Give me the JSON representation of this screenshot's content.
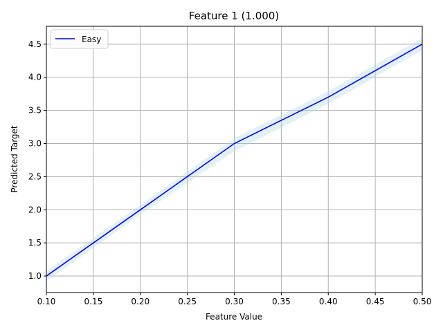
{
  "chart_data": {
    "type": "line",
    "title": "Feature 1 (1.000)",
    "xlabel": "Feature Value",
    "ylabel": "Predicted Target",
    "xlim": [
      0.1,
      0.5
    ],
    "ylim": [
      0.75,
      4.77
    ],
    "x_ticks": [
      "0.10",
      "0.15",
      "0.20",
      "0.25",
      "0.30",
      "0.35",
      "0.40",
      "0.45",
      "0.50"
    ],
    "y_ticks": [
      "1.0",
      "1.5",
      "2.0",
      "2.5",
      "3.0",
      "3.5",
      "4.0",
      "4.5"
    ],
    "grid": true,
    "legend_position": "top-left",
    "series": [
      {
        "name": "Easy",
        "color": "#0000ff",
        "band_color": "#add8e6",
        "x": [
          0.1,
          0.2,
          0.3,
          0.4,
          0.5
        ],
        "y": [
          1.0,
          2.0,
          3.0,
          3.7,
          4.5
        ],
        "y_lower": [
          0.92,
          1.93,
          2.88,
          3.6,
          4.41
        ],
        "y_upper": [
          1.08,
          2.07,
          3.08,
          3.79,
          4.59
        ]
      }
    ]
  }
}
